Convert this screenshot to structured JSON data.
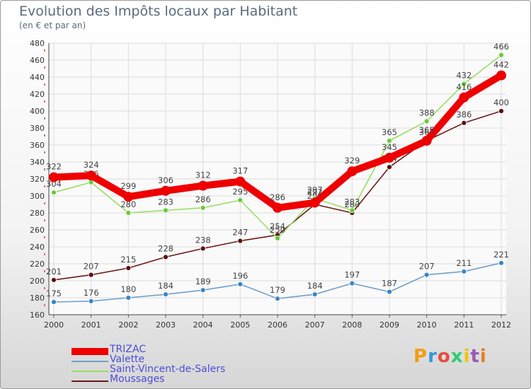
{
  "header": {
    "title": "Evolution des Impôts locaux par Habitant",
    "subtitle": "(en € et par an)"
  },
  "brand": {
    "text": "Proxiti",
    "colors": [
      "#f39c12",
      "#3498db",
      "#e74c3c",
      "#2ecc71",
      "#f1c40f",
      "#9b59b6",
      "#e67e22"
    ]
  },
  "chart_data": {
    "type": "line",
    "title": "Evolution des Impôts locaux par Habitant",
    "subtitle": "(en € et par an)",
    "xlabel": "",
    "ylabel": "",
    "ylim": [
      160,
      480
    ],
    "yticks": [
      160,
      180,
      200,
      220,
      240,
      260,
      280,
      300,
      320,
      340,
      360,
      380,
      400,
      420,
      440,
      460,
      480
    ],
    "grid": true,
    "legend": "bottom-left",
    "x": [
      "2000",
      "2001",
      "2002",
      "2003",
      "2004",
      "2005",
      "2006",
      "2007",
      "2008",
      "2009",
      "2010",
      "2011",
      "2012"
    ],
    "series": [
      {
        "name": "Moussages",
        "color": "#6b1a1a",
        "marker": "#5a1010",
        "width": "thin",
        "values": [
          201,
          207,
          215,
          228,
          238,
          247,
          254,
          290,
          280,
          334,
          365,
          386,
          400
        ],
        "labels": [
          "201",
          "207",
          "215",
          "228",
          "238",
          "247",
          "254",
          "290",
          "280",
          "334",
          "365",
          "386",
          "400"
        ]
      },
      {
        "name": "Valette",
        "color": "#6fa0cc",
        "marker": "#3a86c8",
        "width": "thin",
        "values": [
          175,
          176,
          180,
          184,
          189,
          196,
          179,
          184,
          197,
          187,
          207,
          211,
          221
        ],
        "labels": [
          "175",
          "176",
          "180",
          "184",
          "189",
          "196",
          "179",
          "184",
          "197",
          "187",
          "207",
          "211",
          "221"
        ]
      },
      {
        "name": "Saint-Vincent-de-Salers",
        "color": "#99dd66",
        "marker": "#66cc33",
        "width": "thin",
        "values": [
          304,
          316,
          280,
          283,
          286,
          295,
          250,
          297,
          283,
          365,
          388,
          432,
          466
        ],
        "labels": [
          "304",
          "316",
          "280",
          "283",
          "286",
          "295",
          "250",
          "297",
          "283",
          "365",
          "388",
          "432",
          "466"
        ]
      },
      {
        "name": "TRIZAC",
        "color": "#ee0000",
        "marker": "#ee0000",
        "width": "thick",
        "values": [
          322,
          324,
          299,
          306,
          312,
          317,
          286,
          292,
          329,
          345,
          365,
          416,
          442
        ],
        "labels": [
          "322",
          "324",
          "299",
          "306",
          "312",
          "317",
          "286",
          "292",
          "329",
          "345",
          "365",
          "416",
          "442"
        ]
      }
    ],
    "legend_order": [
      "TRIZAC",
      "Valette",
      "Saint-Vincent-de-Salers",
      "Moussages"
    ]
  }
}
